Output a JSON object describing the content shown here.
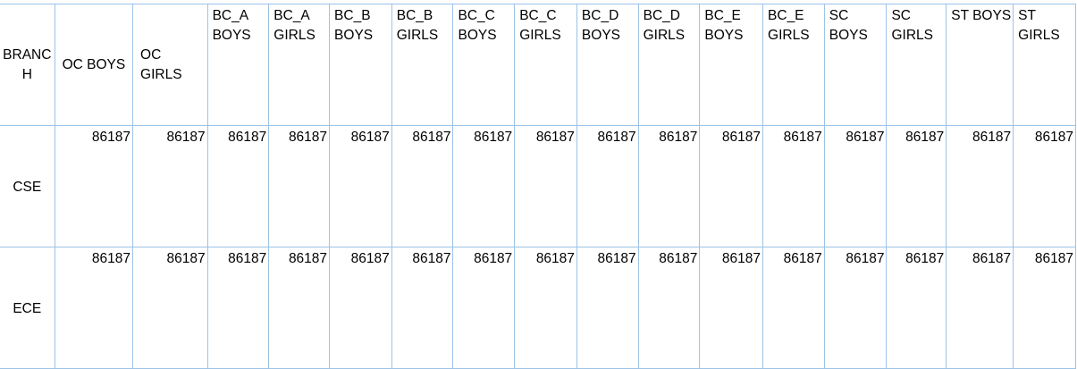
{
  "headers": [
    "BRANCH",
    "OC BOYS",
    "OC GIRLS",
    "BC_A BOYS",
    "BC_A GIRLS",
    "BC_B BOYS",
    "BC_B GIRLS",
    "BC_C BOYS",
    "BC_C GIRLS",
    "BC_D BOYS",
    "BC_D GIRLS",
    "BC_E BOYS",
    "BC_E GIRLS",
    "SC BOYS",
    "SC GIRLS",
    "ST BOYS",
    "ST GIRLS"
  ],
  "rows": [
    {
      "branch": "CSE",
      "values": [
        "86187",
        "86187",
        "86187",
        "86187",
        "86187",
        "86187",
        "86187",
        "86187",
        "86187",
        "86187",
        "86187",
        "86187",
        "86187",
        "86187",
        "86187",
        "86187"
      ]
    },
    {
      "branch": "ECE",
      "values": [
        "86187",
        "86187",
        "86187",
        "86187",
        "86187",
        "86187",
        "86187",
        "86187",
        "86187",
        "86187",
        "86187",
        "86187",
        "86187",
        "86187",
        "86187",
        "86187"
      ]
    }
  ],
  "colors": {
    "border": "#9dc3e6"
  }
}
